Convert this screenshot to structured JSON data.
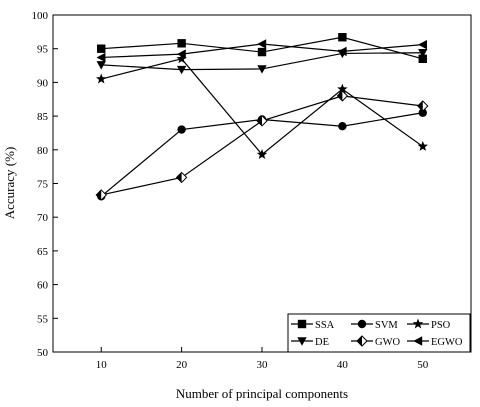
{
  "chart_data": {
    "type": "line",
    "xlabel": "Number of principal components",
    "ylabel": "Accuracy (%)",
    "x": [
      10,
      20,
      30,
      40,
      50
    ],
    "xticks": [
      "10",
      "20",
      "30",
      "40",
      "50"
    ],
    "xlim": [
      4,
      56
    ],
    "ylim": [
      50,
      100
    ],
    "yticks": [
      "50",
      "55",
      "60",
      "65",
      "70",
      "75",
      "80",
      "85",
      "90",
      "95",
      "100"
    ],
    "grid": false,
    "legend_position": "bottom-right",
    "series": [
      {
        "name": "SSA",
        "marker": "square",
        "values": [
          95.0,
          95.8,
          94.5,
          96.7,
          93.5
        ]
      },
      {
        "name": "SVM",
        "marker": "circle",
        "values": [
          73.1,
          83.0,
          84.5,
          83.5,
          85.5
        ]
      },
      {
        "name": "PSO",
        "marker": "star",
        "values": [
          90.5,
          93.5,
          79.3,
          89.0,
          80.5
        ]
      },
      {
        "name": "DE",
        "marker": "triangle-down",
        "values": [
          92.6,
          91.9,
          92.0,
          94.3,
          94.4
        ]
      },
      {
        "name": "GWO",
        "marker": "half-diamond",
        "values": [
          73.3,
          75.9,
          84.3,
          88.0,
          86.5
        ]
      },
      {
        "name": "EGWO",
        "marker": "triangle-left",
        "values": [
          93.7,
          94.2,
          95.7,
          94.6,
          95.6
        ]
      }
    ]
  }
}
